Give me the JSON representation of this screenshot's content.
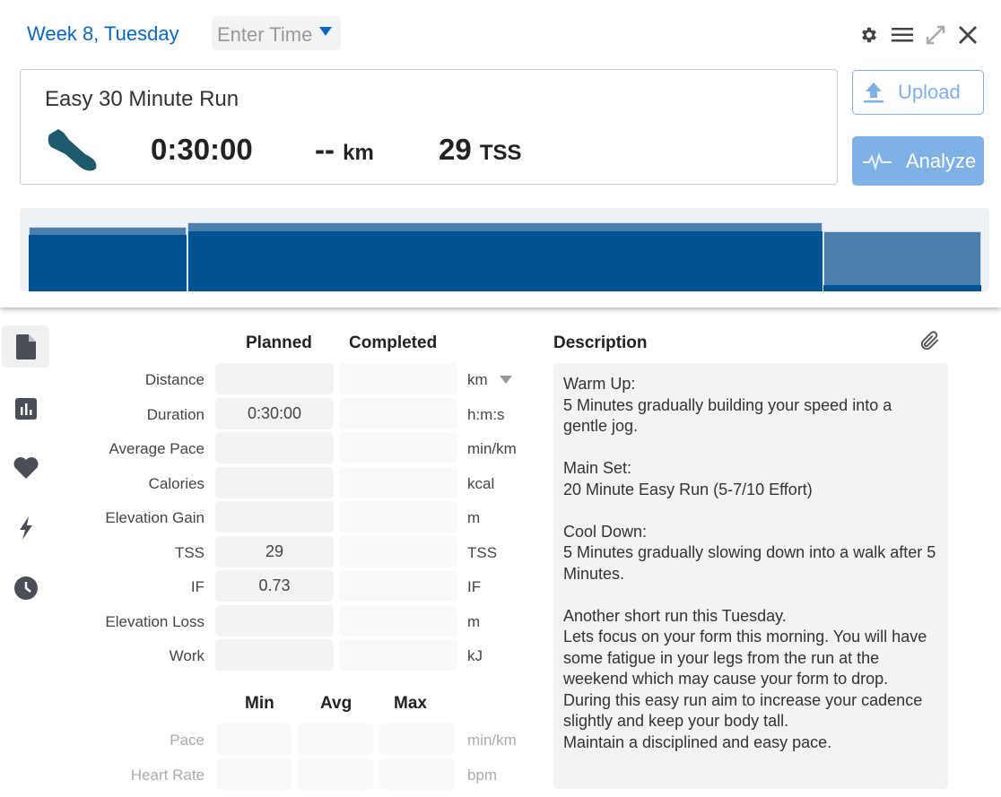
{
  "header": {
    "day": "Week 8, Tuesday",
    "time_placeholder": "Enter Time",
    "icons": [
      "gear-icon",
      "menu-icon",
      "expand-icon",
      "close-icon"
    ]
  },
  "workout": {
    "title": "Easy 30 Minute Run",
    "sport_icon": "running-shoe-icon",
    "duration": "0:30:00",
    "distance": "--",
    "distance_unit": "km",
    "tss": "29",
    "tss_unit": "TSS"
  },
  "actions": {
    "upload": "Upload",
    "analyze": "Analyze"
  },
  "structure": [
    {
      "name": "warm-up",
      "minutes": 5,
      "intensity": "low"
    },
    {
      "name": "main-set",
      "minutes": 20,
      "intensity": "medium"
    },
    {
      "name": "cool-down",
      "minutes": 5,
      "intensity": "low"
    }
  ],
  "sidebar": {
    "items": [
      "file-icon",
      "chart-icon",
      "heart-icon",
      "lightning-icon",
      "clock-icon"
    ]
  },
  "form": {
    "col_planned": "Planned",
    "col_completed": "Completed",
    "rows": [
      {
        "label": "Distance",
        "planned": "",
        "completed": "",
        "unit": "km"
      },
      {
        "label": "Duration",
        "planned": "0:30:00",
        "completed": "",
        "unit": "h:m:s"
      },
      {
        "label": "Average Pace",
        "planned": "",
        "completed": "",
        "unit": "min/km"
      },
      {
        "label": "Calories",
        "planned": "",
        "completed": "",
        "unit": "kcal"
      },
      {
        "label": "Elevation Gain",
        "planned": "",
        "completed": "",
        "unit": "m"
      },
      {
        "label": "TSS",
        "planned": "29",
        "completed": "",
        "unit": "TSS"
      },
      {
        "label": "IF",
        "planned": "0.73",
        "completed": "",
        "unit": "IF"
      },
      {
        "label": "Elevation Loss",
        "planned": "",
        "completed": "",
        "unit": "m"
      },
      {
        "label": "Work",
        "planned": "",
        "completed": "",
        "unit": "kJ"
      }
    ],
    "mm_headers": [
      "Min",
      "Avg",
      "Max"
    ],
    "mm_rows": [
      {
        "label": "Pace",
        "unit": "min/km"
      },
      {
        "label": "Heart Rate",
        "unit": "bpm"
      }
    ]
  },
  "description": {
    "heading": "Description",
    "text": "Warm Up:\n5 Minutes gradually building your speed into a gentle jog.\n\nMain Set:\n20 Minute Easy Run (5-7/10 Effort)\n\nCool Down:\n5 Minutes gradually slowing down into a walk after 5 Minutes.\n\nAnother short run this Tuesday.\nLets focus on your form this morning. You will have some fatigue in your legs from the run at the weekend which may cause your form to drop.\nDuring this easy run aim to increase your cadence slightly and keep your body tall.\nMaintain a disciplined and easy pace."
  }
}
